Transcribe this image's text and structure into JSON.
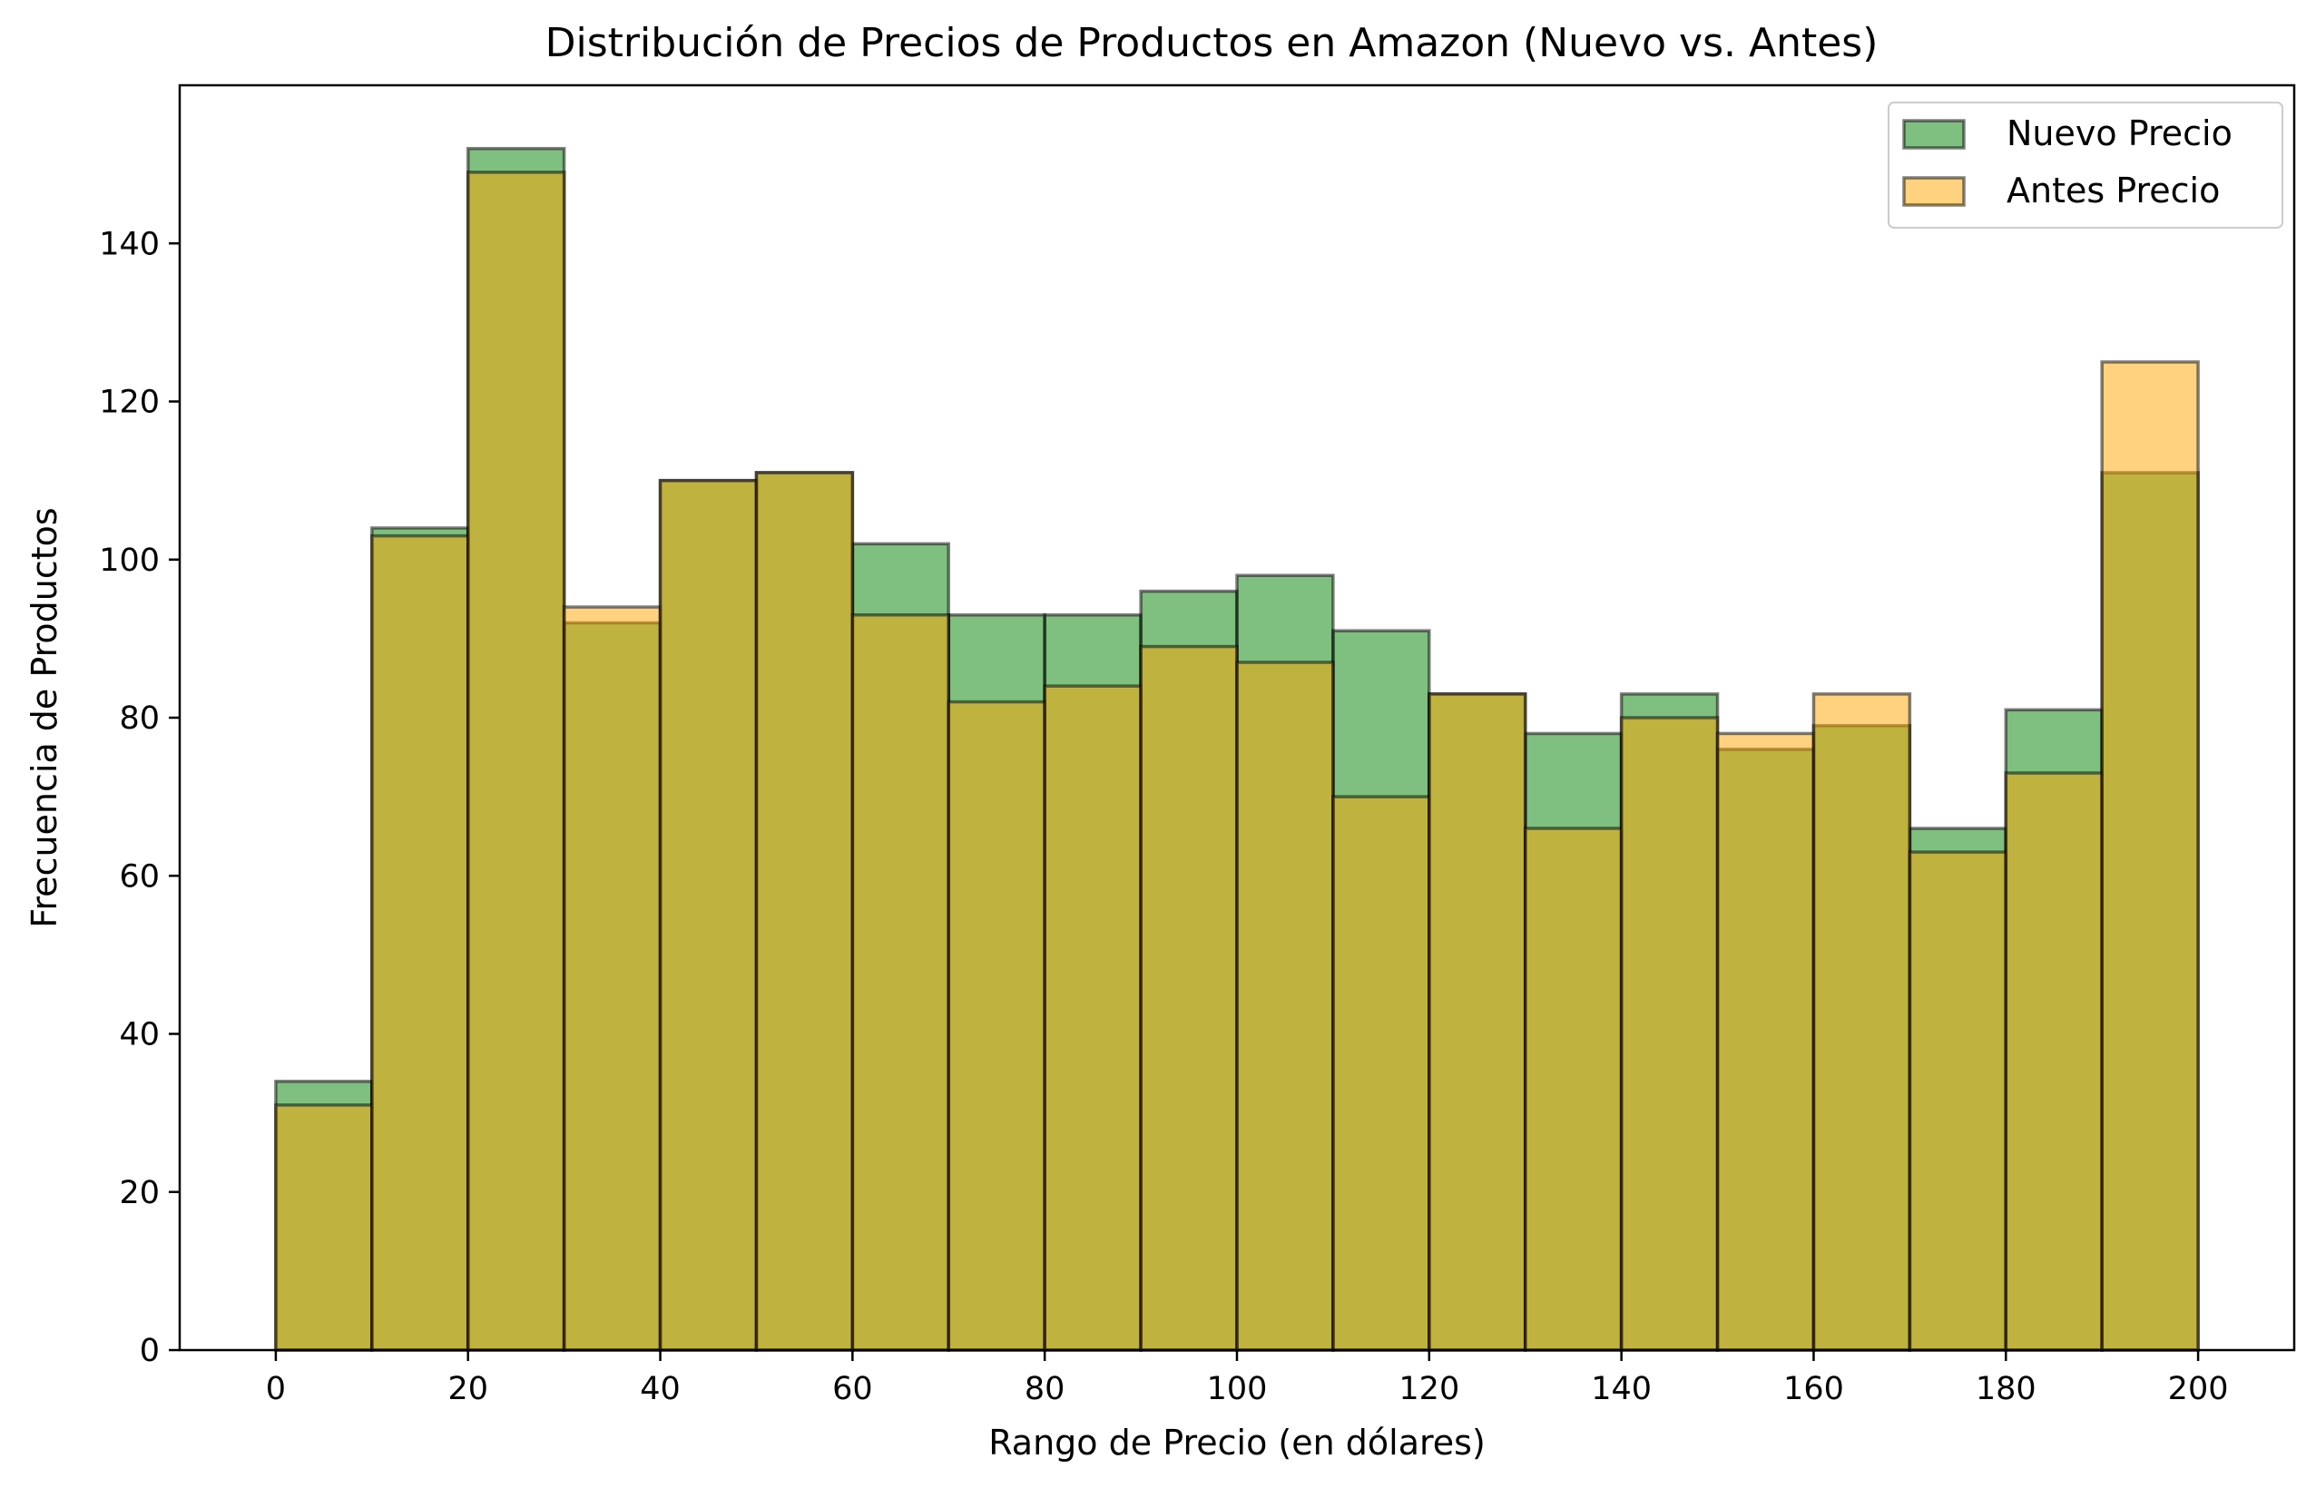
{
  "chart_data": {
    "type": "bar",
    "title": "Distribución de Precios de Productos en Amazon (Nuevo vs. Antes)",
    "xlabel": "Rango de Precio (en dólares)",
    "ylabel": "Frecuencia de Productos",
    "xlim": [
      -10,
      210
    ],
    "ylim": [
      0,
      160
    ],
    "xticks": [
      0,
      20,
      40,
      60,
      80,
      100,
      120,
      140,
      160,
      180,
      200
    ],
    "yticks": [
      0,
      20,
      40,
      60,
      80,
      100,
      120,
      140
    ],
    "bin_edges": [
      0,
      10,
      20,
      30,
      40,
      50,
      60,
      70,
      80,
      90,
      100,
      110,
      120,
      130,
      140,
      150,
      160,
      170,
      180,
      190,
      200
    ],
    "grid": false,
    "legend_position": "top-right",
    "series": [
      {
        "name": "Nuevo Precio",
        "color": "#008000",
        "values": [
          34,
          104,
          152,
          92,
          110,
          111,
          102,
          93,
          93,
          96,
          98,
          91,
          83,
          78,
          83,
          76,
          79,
          66,
          81,
          111
        ]
      },
      {
        "name": "Antes Precio",
        "color": "#FFA500",
        "values": [
          31,
          103,
          149,
          94,
          110,
          111,
          93,
          82,
          84,
          89,
          87,
          70,
          83,
          66,
          80,
          78,
          83,
          63,
          73,
          125
        ]
      }
    ]
  }
}
